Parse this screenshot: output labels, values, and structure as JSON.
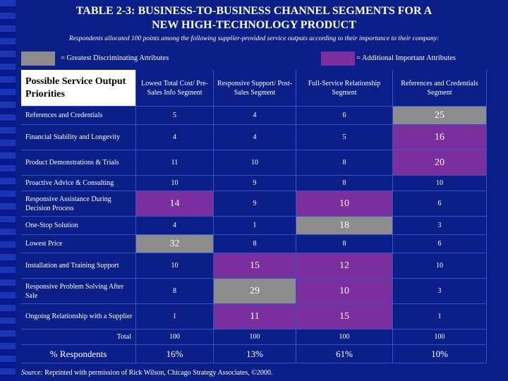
{
  "title_line1": "TABLE 2-3: BUSINESS-TO-BUSINESS CHANNEL SEGMENTS FOR A",
  "title_line2": "NEW HIGH-TECHNOLOGY PRODUCT",
  "subtitle": "Respondents allocated 100 points among the following supplier-provided service outputs according to their importance to their company:",
  "legend": {
    "gray_label": "= Greatest Discriminating Attributes",
    "purple_label": "= Additional Important Attributes",
    "gray_color": "#8c8c8c",
    "purple_color": "#7b2e9e"
  },
  "table": {
    "corner": "Possible Service Output Priorities",
    "columns": [
      "Lowest Total Cost/ Pre-Sales Info Segment",
      "Responsive Support/ Post-Sales Segment",
      "Full-Service Relationship Segment",
      "References and Credentials Segment"
    ],
    "rows": [
      {
        "label": "References and Credentials",
        "values": [
          "5",
          "4",
          "6",
          "25"
        ],
        "highlight": [
          "",
          "",
          "",
          "gray"
        ]
      },
      {
        "label": "Financial Stability and Longevity",
        "values": [
          "4",
          "4",
          "5",
          "16"
        ],
        "highlight": [
          "",
          "",
          "",
          "purple"
        ]
      },
      {
        "label": "Product Demonstrations & Trials",
        "values": [
          "11",
          "10",
          "8",
          "20"
        ],
        "highlight": [
          "",
          "",
          "",
          "purple"
        ]
      },
      {
        "label": "Proactive Advice & Consulting",
        "values": [
          "10",
          "9",
          "8",
          "10"
        ],
        "highlight": [
          "",
          "",
          "",
          ""
        ]
      },
      {
        "label": "Responsive Assistance During Decision Process",
        "values": [
          "14",
          "9",
          "10",
          "6"
        ],
        "highlight": [
          "purple",
          "",
          "purple",
          ""
        ]
      },
      {
        "label": "One-Stop Solution",
        "values": [
          "4",
          "1",
          "18",
          "3"
        ],
        "highlight": [
          "",
          "",
          "gray",
          ""
        ]
      },
      {
        "label": "Lowest Price",
        "values": [
          "32",
          "8",
          "8",
          "6"
        ],
        "highlight": [
          "gray",
          "",
          "",
          ""
        ]
      },
      {
        "label": "Installation and Training Support",
        "values": [
          "10",
          "15",
          "12",
          "10"
        ],
        "highlight": [
          "",
          "purple",
          "purple",
          ""
        ]
      },
      {
        "label": "Responsive Problem Solving After Sale",
        "values": [
          "8",
          "29",
          "10",
          "3"
        ],
        "highlight": [
          "",
          "gray",
          "purple",
          ""
        ]
      },
      {
        "label": "Ongoing Relationship with a Supplier",
        "values": [
          "1",
          "11",
          "15",
          "1"
        ],
        "highlight": [
          "",
          "purple",
          "purple",
          ""
        ]
      }
    ],
    "total": {
      "label": "Total",
      "values": [
        "100",
        "100",
        "100",
        "100"
      ]
    },
    "respondents": {
      "label": "% Respondents",
      "values": [
        "16%",
        "13%",
        "61%",
        "10%"
      ]
    }
  },
  "source": {
    "prefix": "Source:",
    "text": " Reprinted with permission of Rick Wilson, Chicago Strategy Associates, ©2000."
  }
}
